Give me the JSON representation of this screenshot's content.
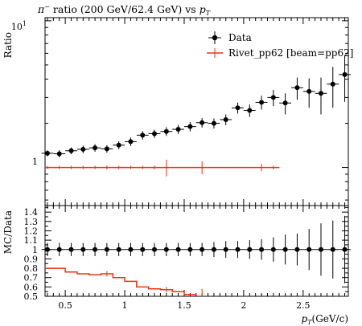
{
  "chart_data": {
    "type": "scatter",
    "title": "π⁻ ratio (200 GeV/62.4 GeV) vs pT",
    "title_parts": {
      "pre": "π",
      "sup": "−",
      "mid": " ratio (200 GeV/62.4 GeV) vs ",
      "var": "p",
      "sub": "T"
    },
    "xlabel": {
      "var": "p",
      "sub": "T",
      "unit": "(GeV/c)"
    },
    "xlim": [
      0.33,
      2.88
    ],
    "xticks": [
      0.5,
      1,
      1.5,
      2,
      2.5
    ],
    "xtick_labels": [
      "0.5",
      "1",
      "1.5",
      "2",
      "2.5"
    ],
    "main": {
      "ylabel": "Ratio",
      "yscale": "log",
      "ylim": [
        0.55,
        10.5
      ],
      "ytick_labels": [
        {
          "value": 1,
          "label": "1"
        },
        {
          "value": 10,
          "label": "10",
          "base": "10",
          "exp": "1"
        }
      ]
    },
    "ratio": {
      "ylabel": "MC/Data",
      "ylim": [
        0.5,
        1.47
      ],
      "yticks": [
        0.5,
        0.6,
        0.7,
        0.8,
        0.9,
        1.0,
        1.1,
        1.2,
        1.3,
        1.4
      ],
      "ytick_labels": [
        "0.5",
        "0.6",
        "0.7",
        "0.8",
        "0.9",
        "1",
        "1.1",
        "1.2",
        "1.3",
        "1.4"
      ]
    },
    "legend": {
      "placement": "top-right",
      "entries": [
        {
          "label": "Data",
          "color": "#000000",
          "marker": "circle"
        },
        {
          "label": "Rivet_pp62 [beam=pp62]",
          "color": "#ee3311",
          "marker": "line"
        }
      ]
    },
    "series": [
      {
        "name": "Data",
        "color": "#000000",
        "points": [
          {
            "x": 0.35,
            "y": 1.25,
            "err": 0.06
          },
          {
            "x": 0.45,
            "y": 1.24,
            "err": 0.07
          },
          {
            "x": 0.55,
            "y": 1.3,
            "err": 0.07
          },
          {
            "x": 0.65,
            "y": 1.33,
            "err": 0.08
          },
          {
            "x": 0.75,
            "y": 1.36,
            "err": 0.08
          },
          {
            "x": 0.85,
            "y": 1.34,
            "err": 0.08
          },
          {
            "x": 0.95,
            "y": 1.42,
            "err": 0.09
          },
          {
            "x": 1.05,
            "y": 1.5,
            "err": 0.1
          },
          {
            "x": 1.15,
            "y": 1.66,
            "err": 0.11
          },
          {
            "x": 1.25,
            "y": 1.7,
            "err": 0.11
          },
          {
            "x": 1.35,
            "y": 1.76,
            "err": 0.12
          },
          {
            "x": 1.45,
            "y": 1.82,
            "err": 0.13
          },
          {
            "x": 1.55,
            "y": 1.9,
            "err": 0.14
          },
          {
            "x": 1.65,
            "y": 2.02,
            "err": 0.15
          },
          {
            "x": 1.75,
            "y": 2.0,
            "err": 0.16
          },
          {
            "x": 1.85,
            "y": 2.12,
            "err": 0.18
          },
          {
            "x": 1.95,
            "y": 2.55,
            "err": 0.22
          },
          {
            "x": 2.05,
            "y": 2.45,
            "err": 0.24
          },
          {
            "x": 2.15,
            "y": 2.78,
            "err": 0.3
          },
          {
            "x": 2.25,
            "y": 3.0,
            "err": 0.38
          },
          {
            "x": 2.35,
            "y": 2.75,
            "err": 0.45
          },
          {
            "x": 2.45,
            "y": 3.5,
            "err": 0.6
          },
          {
            "x": 2.55,
            "y": 3.3,
            "err": 0.75
          },
          {
            "x": 2.65,
            "y": 3.2,
            "err": 0.9
          },
          {
            "x": 2.75,
            "y": 3.7,
            "err": 1.15
          },
          {
            "x": 2.85,
            "y": 4.3,
            "err": 1.5
          }
        ]
      },
      {
        "name": "Rivet_pp62 [beam=pp62]",
        "color": "#ee3311",
        "x_range": [
          0.33,
          2.3
        ],
        "y": 1.0,
        "markers": [
          {
            "x": 0.35,
            "err": 0.0
          },
          {
            "x": 0.45,
            "err": 0.0
          },
          {
            "x": 0.55,
            "err": 0.0
          },
          {
            "x": 0.65,
            "err": 0.0
          },
          {
            "x": 0.75,
            "err": 0.01
          },
          {
            "x": 0.85,
            "err": 0.03
          },
          {
            "x": 0.95,
            "err": 0.01
          },
          {
            "x": 1.05,
            "err": 0.01
          },
          {
            "x": 1.15,
            "err": 0.01
          },
          {
            "x": 1.25,
            "err": 0.03
          },
          {
            "x": 1.35,
            "err": 0.13
          },
          {
            "x": 1.65,
            "err": 0.1
          },
          {
            "x": 2.15,
            "err": 0.06
          },
          {
            "x": 2.25,
            "err": 0.03
          }
        ]
      }
    ],
    "ratio_series": [
      {
        "name": "Data",
        "color": "#000000",
        "points": [
          {
            "x": 0.35,
            "y": 1.0,
            "err": 0.07
          },
          {
            "x": 0.45,
            "y": 1.0,
            "err": 0.07
          },
          {
            "x": 0.55,
            "y": 1.0,
            "err": 0.07
          },
          {
            "x": 0.65,
            "y": 1.0,
            "err": 0.07
          },
          {
            "x": 0.75,
            "y": 1.0,
            "err": 0.07
          },
          {
            "x": 0.85,
            "y": 1.0,
            "err": 0.07
          },
          {
            "x": 0.95,
            "y": 1.0,
            "err": 0.07
          },
          {
            "x": 1.05,
            "y": 1.0,
            "err": 0.07
          },
          {
            "x": 1.15,
            "y": 1.0,
            "err": 0.07
          },
          {
            "x": 1.25,
            "y": 1.0,
            "err": 0.07
          },
          {
            "x": 1.35,
            "y": 1.0,
            "err": 0.07
          },
          {
            "x": 1.45,
            "y": 1.0,
            "err": 0.07
          },
          {
            "x": 1.55,
            "y": 1.0,
            "err": 0.07
          },
          {
            "x": 1.65,
            "y": 1.0,
            "err": 0.07
          },
          {
            "x": 1.75,
            "y": 1.0,
            "err": 0.08
          },
          {
            "x": 1.85,
            "y": 1.0,
            "err": 0.09
          },
          {
            "x": 1.95,
            "y": 1.0,
            "err": 0.09
          },
          {
            "x": 2.05,
            "y": 1.0,
            "err": 0.1
          },
          {
            "x": 2.15,
            "y": 1.0,
            "err": 0.11
          },
          {
            "x": 2.25,
            "y": 1.0,
            "err": 0.13
          },
          {
            "x": 2.35,
            "y": 1.0,
            "err": 0.16
          },
          {
            "x": 2.45,
            "y": 1.0,
            "err": 0.17
          },
          {
            "x": 2.55,
            "y": 1.0,
            "err": 0.22
          },
          {
            "x": 2.65,
            "y": 1.0,
            "err": 0.28
          },
          {
            "x": 2.75,
            "y": 1.0,
            "err": 0.31
          },
          {
            "x": 2.85,
            "y": 1.0,
            "err": 0.36
          }
        ]
      },
      {
        "name": "Rivet_pp62 [beam=pp62]",
        "color": "#ee3311",
        "steps": [
          {
            "x0": 0.33,
            "x1": 0.4,
            "y": 0.8
          },
          {
            "x0": 0.4,
            "x1": 0.5,
            "y": 0.8
          },
          {
            "x0": 0.5,
            "x1": 0.6,
            "y": 0.76
          },
          {
            "x0": 0.6,
            "x1": 0.7,
            "y": 0.74
          },
          {
            "x0": 0.7,
            "x1": 0.8,
            "y": 0.73
          },
          {
            "x0": 0.8,
            "x1": 0.9,
            "y": 0.74
          },
          {
            "x0": 0.9,
            "x1": 1.0,
            "y": 0.7
          },
          {
            "x0": 1.0,
            "x1": 1.1,
            "y": 0.66
          },
          {
            "x0": 1.1,
            "x1": 1.2,
            "y": 0.6
          },
          {
            "x0": 1.2,
            "x1": 1.3,
            "y": 0.58
          },
          {
            "x0": 1.3,
            "x1": 1.4,
            "y": 0.57
          },
          {
            "x0": 1.4,
            "x1": 1.5,
            "y": 0.55
          },
          {
            "x0": 1.5,
            "x1": 1.6,
            "y": 0.52
          }
        ],
        "markers": [
          {
            "x": 0.85,
            "err": 0.03
          },
          {
            "x": 1.35,
            "err": 0.03
          },
          {
            "x": 1.65,
            "err": 0.06
          }
        ]
      }
    ]
  }
}
